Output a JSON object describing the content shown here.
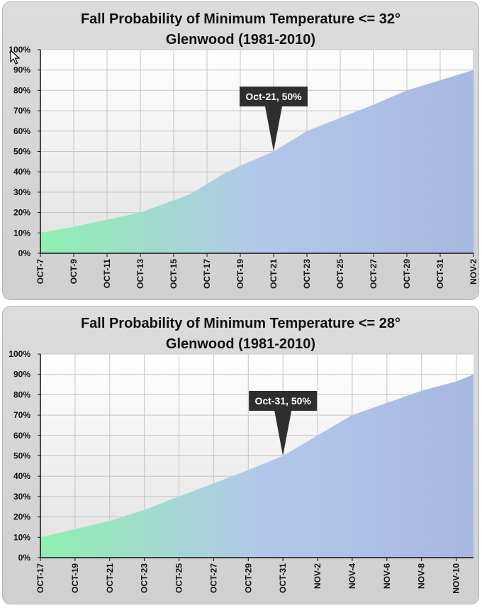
{
  "chart_data": [
    {
      "type": "area",
      "title": "Fall Probability of Minimum Temperature <= 32°",
      "subtitle": "Glenwood (1981-2010)",
      "xlabel": "",
      "ylabel": "",
      "x_ticks": [
        "OCT-7",
        "OCT-9",
        "OCT-11",
        "OCT-13",
        "OCT-15",
        "OCT-17",
        "OCT-19",
        "OCT-21",
        "OCT-23",
        "OCT-25",
        "OCT-27",
        "OCT-29",
        "OCT-31",
        "NOV-2"
      ],
      "y_ticks": [
        "0%",
        "10%",
        "20%",
        "30%",
        "40%",
        "50%",
        "60%",
        "70%",
        "80%",
        "90%",
        "100%"
      ],
      "ylim": [
        0,
        100
      ],
      "series": [
        {
          "x": [
            "OCT-7",
            "OCT-9",
            "OCT-11",
            "OCT-13",
            "OCT-15",
            "OCT-16",
            "OCT-17",
            "OCT-18",
            "OCT-19",
            "OCT-21",
            "OCT-23",
            "OCT-25",
            "OCT-27",
            "OCT-29",
            "OCT-31",
            "NOV-2"
          ],
          "y": [
            10,
            13,
            16.5,
            20,
            26,
            29,
            34,
            39,
            43,
            50,
            60,
            66.5,
            73,
            80,
            85,
            90
          ]
        }
      ],
      "annotation": {
        "label": "Oct-21, 50%",
        "x": "OCT-21",
        "y": 50
      },
      "grid": true
    },
    {
      "type": "area",
      "title": "Fall Probability of Minimum Temperature <= 28°",
      "subtitle": "Glenwood (1981-2010)",
      "xlabel": "",
      "ylabel": "",
      "x_ticks": [
        "OCT-17",
        "OCT-19",
        "OCT-21",
        "OCT-23",
        "OCT-25",
        "OCT-27",
        "OCT-29",
        "OCT-31",
        "NOV-2",
        "NOV-4",
        "NOV-6",
        "NOV-8",
        "NOV-10"
      ],
      "y_ticks": [
        "0%",
        "10%",
        "20%",
        "30%",
        "40%",
        "50%",
        "60%",
        "70%",
        "80%",
        "90%",
        "100%"
      ],
      "ylim": [
        0,
        100
      ],
      "series": [
        {
          "x": [
            "OCT-17",
            "OCT-19",
            "OCT-21",
            "OCT-23",
            "OCT-25",
            "OCT-27",
            "OCT-29",
            "OCT-31",
            "NOV-2",
            "NOV-4",
            "NOV-6",
            "NOV-8",
            "NOV-10",
            "NOV-11"
          ],
          "y": [
            10,
            14,
            18,
            23.5,
            30,
            36.5,
            43,
            50,
            60,
            70,
            76,
            82,
            86.5,
            90
          ]
        }
      ],
      "annotation": {
        "label": "Oct-31, 50%",
        "x": "OCT-31",
        "y": 50
      },
      "grid": true
    }
  ]
}
